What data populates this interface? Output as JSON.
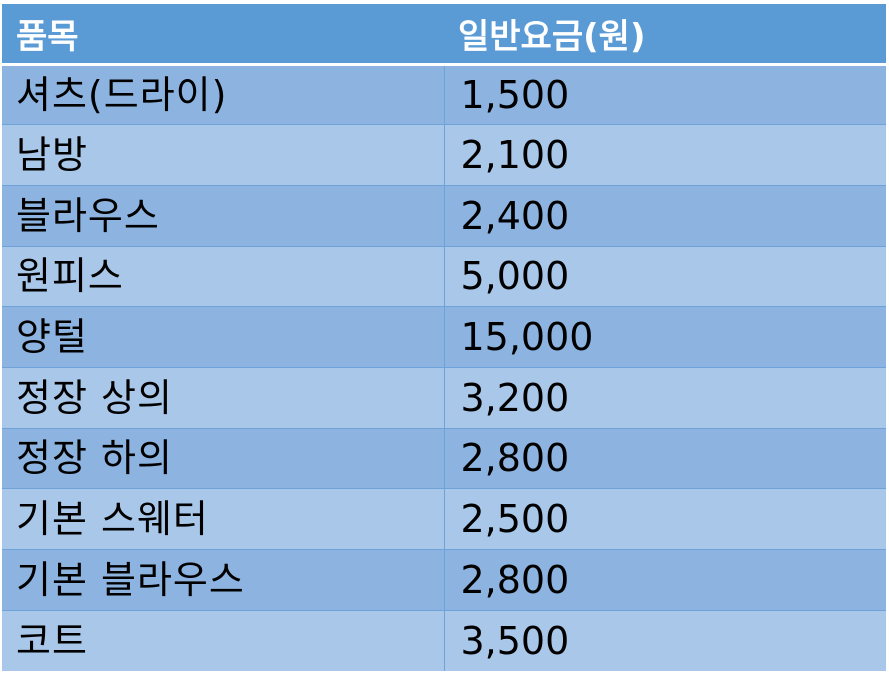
{
  "table": {
    "headers": [
      "품목",
      "일반요금(원)"
    ],
    "rows": [
      [
        "셔츠(드라이)",
        "1,500"
      ],
      [
        "남방",
        "2,100"
      ],
      [
        "블라우스",
        "2,400"
      ],
      [
        "원피스",
        "5,000"
      ],
      [
        "양털",
        "15,000"
      ],
      [
        "정장 상의",
        "3,200"
      ],
      [
        "정장 하의",
        "2,800"
      ],
      [
        "기본 스웨터",
        "2,500"
      ],
      [
        "기본 블라우스",
        "2,800"
      ],
      [
        "코트",
        "3,500"
      ]
    ]
  },
  "colors": {
    "header_bg": "#5b9bd5",
    "row_odd": "#8db4e1",
    "row_even": "#a9c7e9"
  }
}
